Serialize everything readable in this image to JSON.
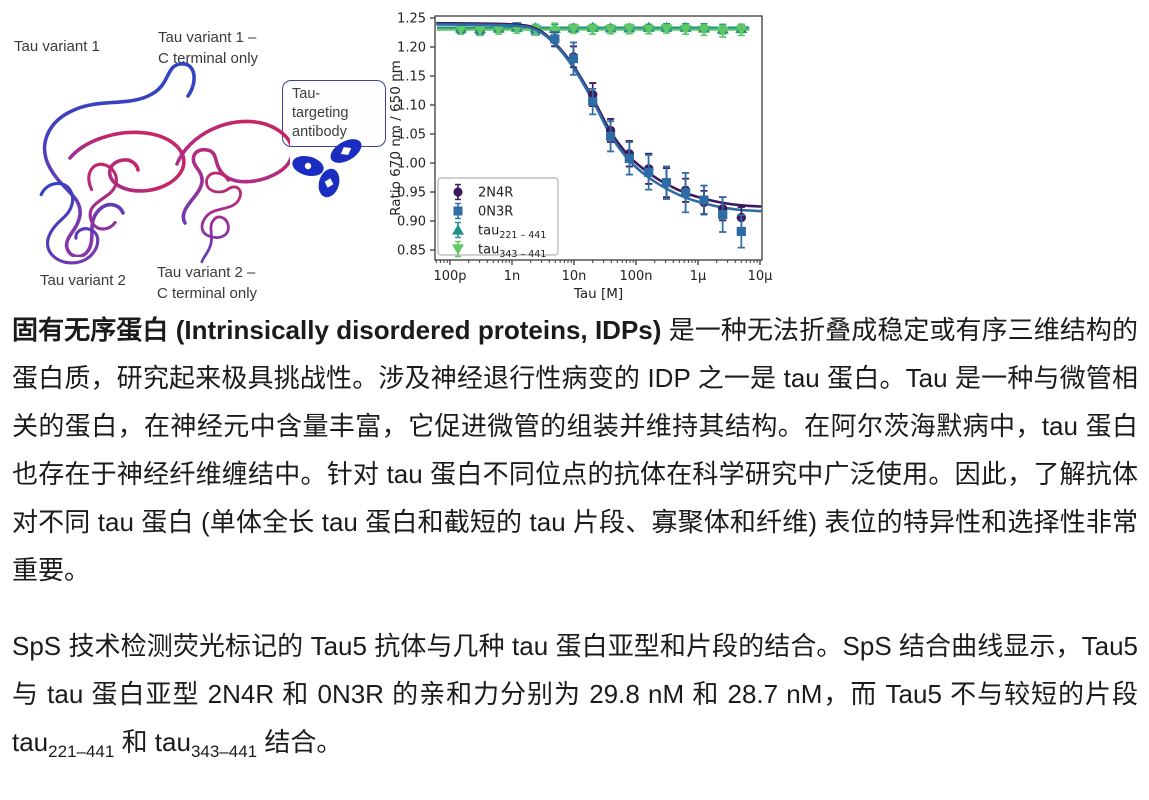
{
  "illustration": {
    "variant1_label": "Tau variant 1",
    "variant1_cterm_line1": "Tau variant 1 –",
    "variant1_cterm_line2": "C terminal only",
    "variant2_label": "Tau variant 2",
    "variant2_cterm_line1": "Tau variant 2 –",
    "variant2_cterm_line2": "C terminal only",
    "antibody_line1": "Tau-targeting",
    "antibody_line2": "antibody",
    "colors": {
      "n_terminal_blue": "#3142c2",
      "mid_purple": "#8a35a8",
      "c_terminal_crimson": "#c42668",
      "antibody_blue": "#1b2cc0"
    }
  },
  "chart_data": {
    "type": "scatter",
    "xlabel": "Tau [M]",
    "ylabel": "Ratio 670 nm / 650 nm",
    "x_scale": "log",
    "x_tick_labels": [
      "100p",
      "1n",
      "10n",
      "100n",
      "1µ",
      "10µ"
    ],
    "x_tick_values": [
      1e-10,
      1e-09,
      1e-08,
      1e-07,
      1e-06,
      1e-05
    ],
    "y_tick_labels": [
      "1.25",
      "1.20",
      "1.15",
      "1.10",
      "1.05",
      "1.00",
      "0.95",
      "0.90",
      "0.85"
    ],
    "y_tick_values": [
      1.25,
      1.2,
      1.15,
      1.1,
      1.05,
      1.0,
      0.95,
      0.9,
      0.85
    ],
    "xlim": [
      5.7e-11,
      1.08e-05
    ],
    "ylim": [
      0.833,
      1.253
    ],
    "legend_position": "lower left",
    "grid": false,
    "x": [
      1.5e-10,
      3.05e-10,
      6.1e-10,
      1.2e-09,
      2.4e-09,
      4.9e-09,
      9.8e-09,
      2e-08,
      3.9e-08,
      7.8e-08,
      1.6e-07,
      3.1e-07,
      6.3e-07,
      1.25e-06,
      2.5e-06,
      5e-06
    ],
    "series": [
      {
        "name": "2N4R",
        "name_sub": "",
        "marker": "circle",
        "color": "#3b1b5e",
        "values": [
          1.234,
          1.233,
          1.234,
          1.235,
          1.229,
          1.213,
          1.183,
          1.118,
          1.056,
          1.016,
          0.99,
          0.966,
          0.953,
          0.932,
          0.921,
          0.906
        ],
        "errors": [
          0.005,
          0.005,
          0.004,
          0.005,
          0.006,
          0.012,
          0.018,
          0.02,
          0.02,
          0.022,
          0.026,
          0.025,
          0.02,
          0.02,
          0.02,
          0.018
        ],
        "fit_x": [
          6e-11,
          1e-09,
          2.5e-09,
          5e-09,
          1e-08,
          2e-08,
          4e-08,
          8e-08,
          1.6e-07,
          3.2e-07,
          6.4e-07,
          1.3e-06,
          2.6e-06,
          5e-06,
          1.05e-05
        ],
        "fit_y": [
          1.241,
          1.239,
          1.231,
          1.206,
          1.166,
          1.112,
          1.052,
          1.01,
          0.983,
          0.963,
          0.948,
          0.938,
          0.931,
          0.927,
          0.925
        ]
      },
      {
        "name": "0N3R",
        "name_sub": "",
        "marker": "square",
        "color": "#2e6ca6",
        "values": [
          1.231,
          1.229,
          1.232,
          1.235,
          1.228,
          1.214,
          1.18,
          1.106,
          1.046,
          1.008,
          0.984,
          0.966,
          0.949,
          0.936,
          0.911,
          0.882
        ],
        "errors": [
          0.005,
          0.006,
          0.005,
          0.004,
          0.007,
          0.012,
          0.028,
          0.022,
          0.026,
          0.028,
          0.03,
          0.028,
          0.034,
          0.025,
          0.03,
          0.028
        ],
        "fit_x": [
          6e-11,
          1e-09,
          2.5e-09,
          5e-09,
          1e-08,
          2e-08,
          4e-08,
          8e-08,
          1.6e-07,
          3.2e-07,
          6.4e-07,
          1.3e-06,
          2.6e-06,
          5e-06,
          1.05e-05
        ],
        "fit_y": [
          1.239,
          1.237,
          1.229,
          1.204,
          1.163,
          1.108,
          1.046,
          1.003,
          0.975,
          0.955,
          0.94,
          0.93,
          0.923,
          0.919,
          0.917
        ]
      },
      {
        "name": "tau",
        "name_sub": "221 – 441",
        "marker": "triangle-up",
        "color": "#1f9188",
        "values": [
          1.233,
          1.232,
          1.233,
          1.234,
          1.233,
          1.232,
          1.233,
          1.234,
          1.233,
          1.233,
          1.234,
          1.234,
          1.234,
          1.233,
          1.231,
          1.232
        ],
        "errors": [
          0.006,
          0.005,
          0.006,
          0.005,
          0.006,
          0.007,
          0.006,
          0.005,
          0.005,
          0.006,
          0.005,
          0.006,
          0.006,
          0.007,
          0.008,
          0.007
        ],
        "flat_y": 1.2335
      },
      {
        "name": "tau",
        "name_sub": "343 – 441",
        "marker": "triangle-down",
        "color": "#5fc763",
        "values": [
          1.23,
          1.229,
          1.23,
          1.231,
          1.23,
          1.228,
          1.231,
          1.23,
          1.23,
          1.231,
          1.23,
          1.231,
          1.23,
          1.229,
          1.227,
          1.229
        ],
        "errors": [
          0.008,
          0.009,
          0.008,
          0.007,
          0.008,
          0.013,
          0.007,
          0.008,
          0.007,
          0.008,
          0.007,
          0.007,
          0.008,
          0.009,
          0.01,
          0.009
        ],
        "flat_y": 1.23
      }
    ]
  },
  "text": {
    "p1_bold": "固有无序蛋白 (Intrinsically disordered proteins, IDPs)",
    "p1_rest": " 是一种无法折叠成稳定或有序三维结构的蛋白质，研究起来极具挑战性。涉及神经退行性病变的 IDP 之一是 tau 蛋白。Tau 是一种与微管相关的蛋白，在神经元中含量丰富，它促进微管的组装并维持其结构。在阿尔茨海默病中，tau 蛋白也存在于神经纤维缠结中。针对 tau 蛋白不同位点的抗体在科学研究中广泛使用。因此，了解抗体对不同 tau 蛋白 (单体全长 tau 蛋白和截短的 tau 片段、寡聚体和纤维) 表位的特异性和选择性非常重要。",
    "p2_seg1": "SpS 技术检测荧光标记的 Tau5 抗体与几种 tau 蛋白亚型和片段的结合。SpS 结合曲线显示，Tau5 与 tau 蛋白亚型 2N4R 和 0N3R 的亲和力分别为 29.8 nM 和 28.7 nM，而 Tau5 不与较短的片段 tau",
    "p2_sub1": "221–441",
    "p2_seg2": " 和 tau",
    "p2_sub2": "343–441",
    "p2_seg3": " 结合。"
  }
}
